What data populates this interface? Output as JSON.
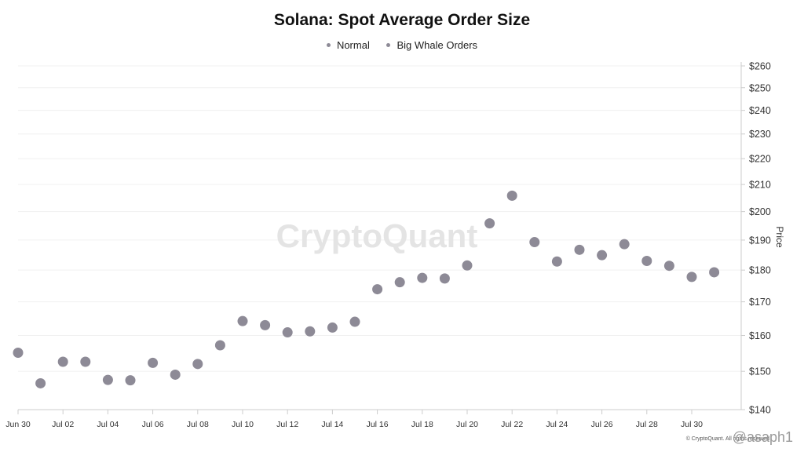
{
  "chart_data": {
    "type": "scatter",
    "title": "Solana: Spot Average Order Size",
    "legend": [
      "Normal",
      "Big Whale Orders"
    ],
    "ylabel": "Price",
    "ylim": [
      140,
      260
    ],
    "y_scale": "log",
    "y_ticks": [
      "$140",
      "$150",
      "$160",
      "$170",
      "$180",
      "$190",
      "$200",
      "$210",
      "$220",
      "$230",
      "$240",
      "$250",
      "$260"
    ],
    "y_tick_values": [
      140,
      150,
      160,
      170,
      180,
      190,
      200,
      210,
      220,
      230,
      240,
      250,
      260
    ],
    "x_ticks": [
      "Jun 30",
      "Jul 02",
      "Jul 04",
      "Jul 06",
      "Jul 08",
      "Jul 10",
      "Jul 12",
      "Jul 14",
      "Jul 16",
      "Jul 18",
      "Jul 20",
      "Jul 22",
      "Jul 24",
      "Jul 26",
      "Jul 28",
      "Jul 30"
    ],
    "x": [
      "Jun 30",
      "Jul 01",
      "Jul 02",
      "Jul 03",
      "Jul 04",
      "Jul 05",
      "Jul 06",
      "Jul 07",
      "Jul 08",
      "Jul 09",
      "Jul 10",
      "Jul 11",
      "Jul 12",
      "Jul 13",
      "Jul 14",
      "Jul 15",
      "Jul 16",
      "Jul 17",
      "Jul 18",
      "Jul 19",
      "Jul 20",
      "Jul 21",
      "Jul 22",
      "Jul 23",
      "Jul 24",
      "Jul 25",
      "Jul 26",
      "Jul 27",
      "Jul 28",
      "Jul 29",
      "Jul 30",
      "Jul 31"
    ],
    "series": [
      {
        "name": "Big Whale Orders",
        "color": "#8d8a96",
        "values": [
          155.1,
          146.8,
          152.6,
          152.6,
          147.7,
          147.6,
          152.3,
          149.1,
          152.0,
          157.2,
          164.2,
          163.0,
          160.9,
          161.2,
          162.3,
          164.0,
          173.9,
          176.1,
          177.5,
          177.3,
          181.5,
          195.8,
          205.8,
          189.3,
          182.8,
          186.7,
          184.9,
          188.6,
          183.0,
          181.4,
          177.8,
          179.3
        ]
      }
    ],
    "grid": true
  },
  "watermark": "CryptoQuant",
  "footer": {
    "copyright": "© CryptoQuant. All rights reserved",
    "handle": "@asaph1"
  }
}
